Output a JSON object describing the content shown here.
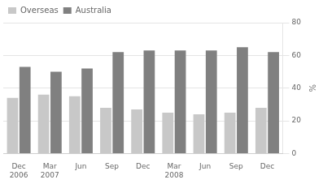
{
  "chart_data": {
    "type": "bar",
    "categories": [
      "Dec\n2006",
      "Mar\n2007",
      "Jun",
      "Sep",
      "Dec",
      "Mar\n2008",
      "Jun",
      "Sep",
      "Dec"
    ],
    "series": [
      {
        "name": "Overseas",
        "color": "#c8c8c8",
        "values": [
          34,
          36,
          35,
          28,
          27,
          25,
          24,
          25,
          28
        ]
      },
      {
        "name": "Australia",
        "color": "#808080",
        "values": [
          53,
          50,
          52,
          62,
          63,
          63,
          63,
          65,
          62
        ]
      }
    ],
    "y_label": "%",
    "ylim": [
      0,
      80
    ],
    "yticks": [
      0,
      20,
      40,
      60,
      80
    ],
    "grid": true,
    "legend": "upper left"
  }
}
